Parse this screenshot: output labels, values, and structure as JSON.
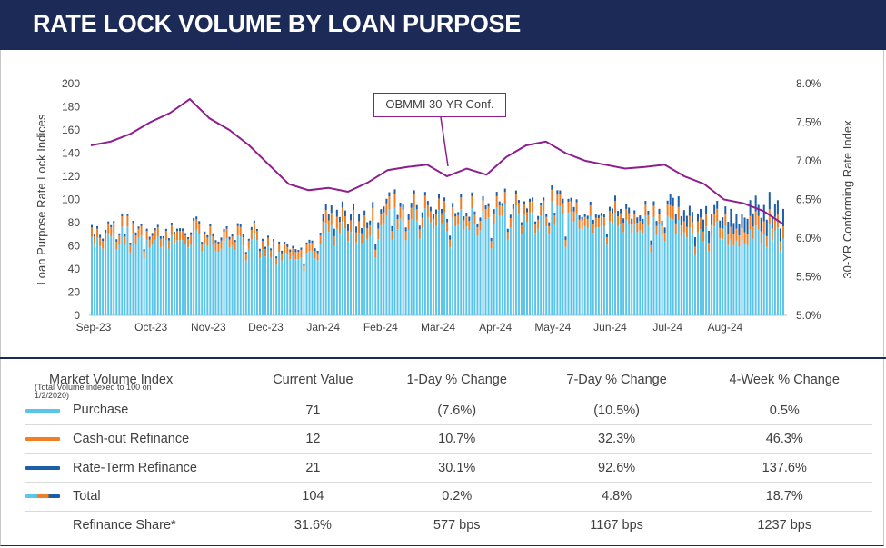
{
  "header": {
    "title": "RATE LOCK VOLUME BY LOAN PURPOSE"
  },
  "colors": {
    "purchase": "#5bc4ea",
    "cashout": "#ef7f22",
    "rateterm": "#1d5ea8",
    "rate_index": "#8e1e8e",
    "header_bg": "#1b2a57"
  },
  "chart_data": {
    "type": "bar",
    "stacked": true,
    "left_axis": {
      "label": "Loan Purpose Rate Lock Indices",
      "ticks": [
        "0",
        "20",
        "40",
        "60",
        "80",
        "100",
        "120",
        "140",
        "160",
        "180",
        "200"
      ],
      "range": [
        0,
        200
      ]
    },
    "right_axis": {
      "label": "30-YR Conforming Rate Index",
      "ticks": [
        "5.0%",
        "5.5%",
        "6.0%",
        "6.5%",
        "7.0%",
        "7.5%",
        "8.0%"
      ],
      "range": [
        5.0,
        8.0
      ]
    },
    "x_ticks": [
      "Sep-23",
      "Oct-23",
      "Nov-23",
      "Dec-23",
      "Jan-24",
      "Feb-24",
      "Mar-24",
      "Apr-24",
      "May-24",
      "Jun-24",
      "Jul-24",
      "Aug-24"
    ],
    "series_names": [
      "Purchase",
      "Cash-out Refinance",
      "Rate-Term Refinance"
    ],
    "callout": "OBMMI 30-YR Conf.",
    "monthly_summary": [
      {
        "month": "Sep-23",
        "purchase": 68,
        "cashout": 8,
        "rateterm": 2,
        "total": 78
      },
      {
        "month": "Oct-23",
        "purchase": 66,
        "cashout": 8,
        "rateterm": 2,
        "total": 76
      },
      {
        "month": "Nov-23",
        "purchase": 65,
        "cashout": 8,
        "rateterm": 2,
        "total": 75
      },
      {
        "month": "Dec-23",
        "purchase": 55,
        "cashout": 7,
        "rateterm": 2,
        "total": 64
      },
      {
        "month": "Jan-24",
        "purchase": 72,
        "cashout": 10,
        "rateterm": 5,
        "total": 87
      },
      {
        "month": "Feb-24",
        "purchase": 84,
        "cashout": 10,
        "rateterm": 4,
        "total": 98
      },
      {
        "month": "Mar-24",
        "purchase": 82,
        "cashout": 9,
        "rateterm": 3,
        "total": 94
      },
      {
        "month": "Apr-24",
        "purchase": 87,
        "cashout": 9,
        "rateterm": 3,
        "total": 99
      },
      {
        "month": "May-24",
        "purchase": 86,
        "cashout": 9,
        "rateterm": 3,
        "total": 98
      },
      {
        "month": "Jun-24",
        "purchase": 80,
        "cashout": 9,
        "rateterm": 4,
        "total": 93
      },
      {
        "month": "Jul-24",
        "purchase": 74,
        "cashout": 10,
        "rateterm": 8,
        "total": 92
      },
      {
        "month": "Aug-24",
        "purchase": 70,
        "cashout": 11,
        "rateterm": 12,
        "total": 93
      }
    ],
    "rate_series": [
      {
        "x": "Sep-23",
        "y": 7.2
      },
      {
        "x": "Sep-23b",
        "y": 7.25
      },
      {
        "x": "Sep-23c",
        "y": 7.35
      },
      {
        "x": "Oct-23",
        "y": 7.5
      },
      {
        "x": "Oct-23b",
        "y": 7.62
      },
      {
        "x": "Oct-23c",
        "y": 7.8
      },
      {
        "x": "Nov-23",
        "y": 7.55
      },
      {
        "x": "Nov-23b",
        "y": 7.4
      },
      {
        "x": "Nov-23c",
        "y": 7.2
      },
      {
        "x": "Dec-23",
        "y": 6.95
      },
      {
        "x": "Dec-23b",
        "y": 6.7
      },
      {
        "x": "Dec-23c",
        "y": 6.62
      },
      {
        "x": "Jan-24",
        "y": 6.65
      },
      {
        "x": "Jan-24b",
        "y": 6.6
      },
      {
        "x": "Jan-24c",
        "y": 6.72
      },
      {
        "x": "Feb-24",
        "y": 6.88
      },
      {
        "x": "Feb-24b",
        "y": 6.92
      },
      {
        "x": "Feb-24c",
        "y": 6.95
      },
      {
        "x": "Mar-24",
        "y": 6.8
      },
      {
        "x": "Mar-24b",
        "y": 6.9
      },
      {
        "x": "Mar-24c",
        "y": 6.82
      },
      {
        "x": "Apr-24",
        "y": 7.05
      },
      {
        "x": "Apr-24b",
        "y": 7.2
      },
      {
        "x": "Apr-24c",
        "y": 7.25
      },
      {
        "x": "May-24",
        "y": 7.1
      },
      {
        "x": "May-24b",
        "y": 7.0
      },
      {
        "x": "May-24c",
        "y": 6.95
      },
      {
        "x": "Jun-24",
        "y": 6.9
      },
      {
        "x": "Jun-24b",
        "y": 6.92
      },
      {
        "x": "Jun-24c",
        "y": 6.95
      },
      {
        "x": "Jul-24",
        "y": 6.8
      },
      {
        "x": "Jul-24b",
        "y": 6.7
      },
      {
        "x": "Jul-24c",
        "y": 6.5
      },
      {
        "x": "Aug-24",
        "y": 6.45
      },
      {
        "x": "Aug-24b",
        "y": 6.35
      },
      {
        "x": "Aug-24c",
        "y": 6.18
      }
    ]
  },
  "table": {
    "headers": [
      "Market Volume Index",
      "Current Value",
      "1-Day % Change",
      "7-Day % Change",
      "4-Week % Change"
    ],
    "header_note": "(Total Volume indexed to 100 on 1/2/2020)",
    "rows": [
      {
        "label": "Purchase",
        "swatch": "purchase",
        "current": "71",
        "d1": "(7.6%)",
        "d7": "(10.5%)",
        "w4": "0.5%"
      },
      {
        "label": "Cash-out Refinance",
        "swatch": "cashout",
        "current": "12",
        "d1": "10.7%",
        "d7": "32.3%",
        "w4": "46.3%"
      },
      {
        "label": "Rate-Term Refinance",
        "swatch": "rateterm",
        "current": "21",
        "d1": "30.1%",
        "d7": "92.6%",
        "w4": "137.6%"
      },
      {
        "label": "Total",
        "swatch": "total",
        "current": "104",
        "d1": "0.2%",
        "d7": "4.8%",
        "w4": "18.7%"
      },
      {
        "label": "Refinance Share*",
        "swatch": "none",
        "current": "31.6%",
        "d1": "577 bps",
        "d7": "1167 bps",
        "w4": "1237 bps"
      }
    ]
  }
}
